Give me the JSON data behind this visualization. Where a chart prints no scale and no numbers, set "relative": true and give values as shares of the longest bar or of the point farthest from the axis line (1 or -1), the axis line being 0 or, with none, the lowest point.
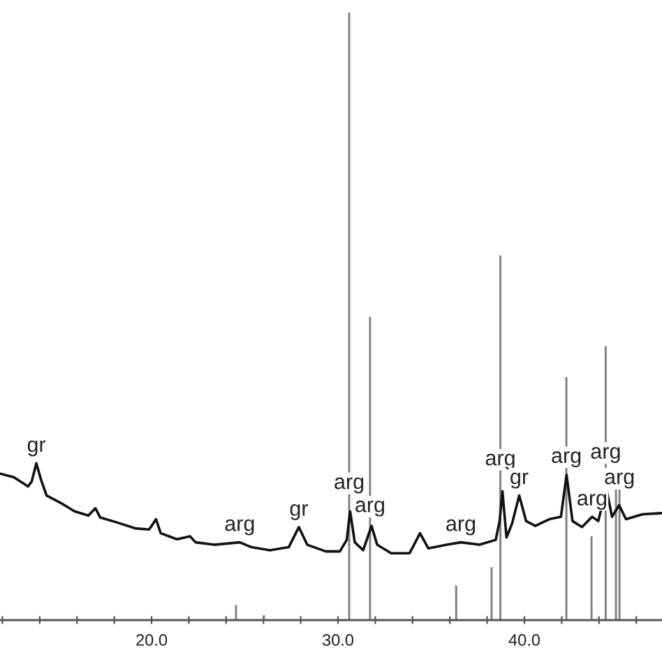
{
  "chart_data": {
    "type": "line",
    "relative": true,
    "xlim": [
      11.87,
      47.38
    ],
    "xticks": [
      {
        "value": 12,
        "label": null
      },
      {
        "value": 14,
        "label": null
      },
      {
        "value": 16,
        "label": null
      },
      {
        "value": 18,
        "label": null
      },
      {
        "value": 20,
        "label": "20.0"
      },
      {
        "value": 22,
        "label": null
      },
      {
        "value": 24,
        "label": null
      },
      {
        "value": 26,
        "label": null
      },
      {
        "value": 28,
        "label": null
      },
      {
        "value": 30,
        "label": "30.0"
      },
      {
        "value": 32,
        "label": null
      },
      {
        "value": 34,
        "label": null
      },
      {
        "value": 36,
        "label": null
      },
      {
        "value": 38,
        "label": null
      },
      {
        "value": 40,
        "label": "40.0"
      },
      {
        "value": 42,
        "label": null
      },
      {
        "value": 44,
        "label": null
      },
      {
        "value": 46,
        "label": null
      }
    ],
    "series": [
      {
        "type": "bar",
        "color": "#808080",
        "x": [
          24.53,
          26.03,
          30.6,
          31.72,
          36.34,
          38.24,
          38.71,
          42.25,
          43.6,
          44.36,
          44.91,
          45.1
        ],
        "values": [
          0.025,
          0.008,
          1.0,
          0.499,
          0.057,
          0.087,
          0.6,
          0.4,
          0.138,
          0.451,
          0.215,
          0.215
        ]
      },
      {
        "color": "#111111",
        "x": [
          11.87,
          12.62,
          13.37,
          13.57,
          13.82,
          14.07,
          14.37,
          15.12,
          15.87,
          16.61,
          16.99,
          17.24,
          18.11,
          19.12,
          19.87,
          20.24,
          20.49,
          21.36,
          22.06,
          22.36,
          23.36,
          24.73,
          25.36,
          26.35,
          27.36,
          27.9,
          28.35,
          29.35,
          29.85,
          30.1,
          30.47,
          30.65,
          30.9,
          31.35,
          31.8,
          32.1,
          32.85,
          33.84,
          34.4,
          34.85,
          35.84,
          36.59,
          37.59,
          38.46,
          38.67,
          38.82,
          39.04,
          39.34,
          39.72,
          40.09,
          40.58,
          41.33,
          41.96,
          42.26,
          42.58,
          43.09,
          43.63,
          43.96,
          44.4,
          44.7,
          45.08,
          45.45,
          46.33,
          47.33
        ],
        "values": [
          0.241,
          0.235,
          0.22,
          0.228,
          0.258,
          0.231,
          0.205,
          0.193,
          0.179,
          0.172,
          0.184,
          0.169,
          0.161,
          0.151,
          0.149,
          0.166,
          0.143,
          0.133,
          0.138,
          0.128,
          0.124,
          0.128,
          0.12,
          0.115,
          0.12,
          0.153,
          0.124,
          0.113,
          0.113,
          0.113,
          0.132,
          0.179,
          0.128,
          0.115,
          0.155,
          0.124,
          0.11,
          0.11,
          0.143,
          0.118,
          0.124,
          0.128,
          0.124,
          0.132,
          0.163,
          0.212,
          0.136,
          0.159,
          0.205,
          0.163,
          0.155,
          0.166,
          0.17,
          0.239,
          0.163,
          0.153,
          0.17,
          0.163,
          0.216,
          0.17,
          0.189,
          0.166,
          0.174,
          0.176
        ]
      }
    ],
    "annotations": [
      {
        "text": "gr",
        "x": 13.82,
        "y": 0.258
      },
      {
        "text": "arg",
        "x": 24.73,
        "y": 0.128
      },
      {
        "text": "gr",
        "x": 27.9,
        "y": 0.153
      },
      {
        "text": "arg",
        "x": 30.6,
        "y": 0.197
      },
      {
        "text": "arg",
        "x": 31.72,
        "y": 0.159
      },
      {
        "text": "arg",
        "x": 36.59,
        "y": 0.128
      },
      {
        "text": "arg",
        "x": 38.71,
        "y": 0.236
      },
      {
        "text": "gr",
        "x": 39.72,
        "y": 0.205
      },
      {
        "text": "arg",
        "x": 42.25,
        "y": 0.24
      },
      {
        "text": "arg",
        "x": 43.63,
        "y": 0.17
      },
      {
        "text": "arg",
        "x": 44.36,
        "y": 0.247
      },
      {
        "text": "arg",
        "x": 45.1,
        "y": 0.205
      }
    ]
  }
}
